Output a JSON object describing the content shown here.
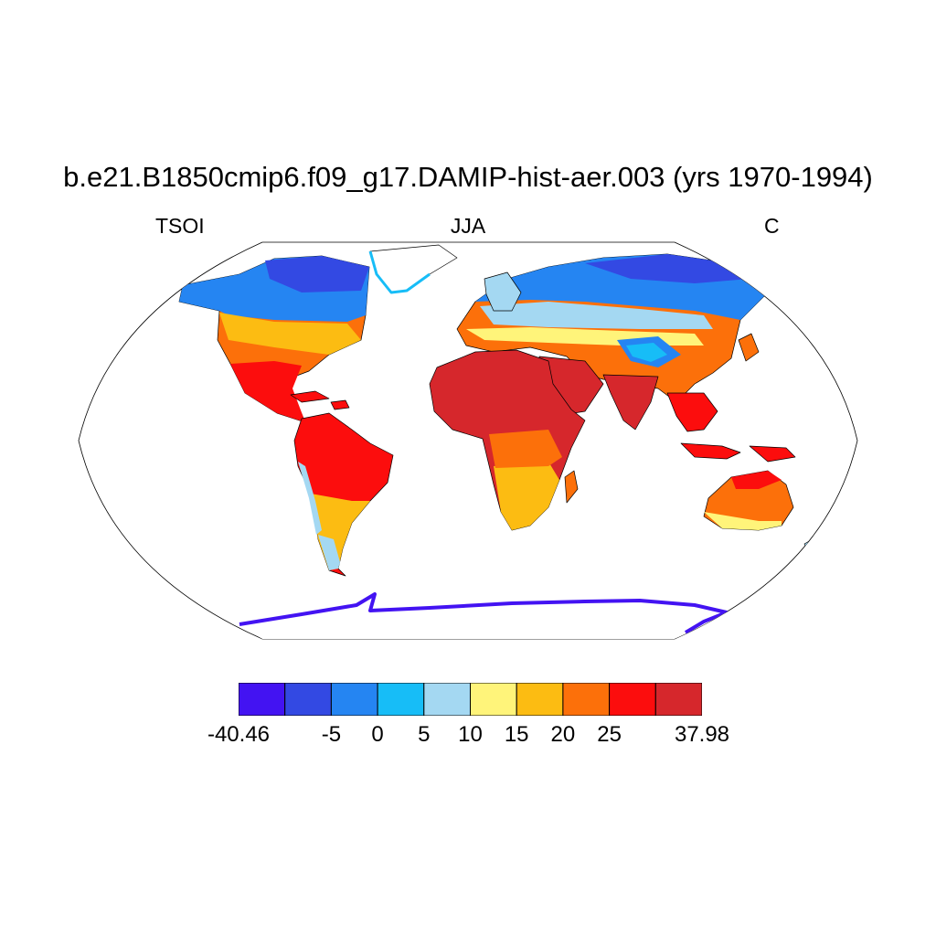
{
  "figure": {
    "title": "b.e21.B1850cmip6.f09_g17.DAMIP-hist-aer.003 (yrs 1970-1994)",
    "left_label": "TSOI",
    "center_label": "JJA",
    "right_label": "C"
  },
  "map": {
    "projection": "Robinson",
    "ocean_color": "#ffffff",
    "coastline_color": "#000000"
  },
  "colorbar": {
    "colors": [
      "#4313f2",
      "#3349e3",
      "#2585f2",
      "#17bdf7",
      "#a4d8f2",
      "#fff47a",
      "#fcbc12",
      "#fc700a",
      "#fc0d0d",
      "#d6272c"
    ],
    "labels": [
      {
        "text": "-40.46",
        "boundary": 0
      },
      {
        "text": "-5",
        "boundary": 2
      },
      {
        "text": "0",
        "boundary": 3
      },
      {
        "text": "5",
        "boundary": 4
      },
      {
        "text": "10",
        "boundary": 5
      },
      {
        "text": "15",
        "boundary": 6
      },
      {
        "text": "20",
        "boundary": 7
      },
      {
        "text": "25",
        "boundary": 8
      },
      {
        "text": "37.98",
        "boundary": 10
      }
    ]
  }
}
